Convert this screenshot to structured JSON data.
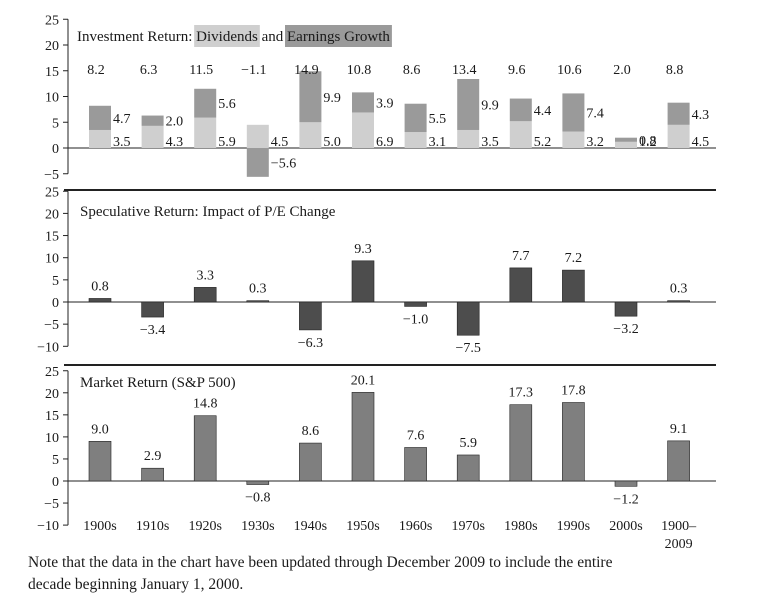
{
  "chart_data": [
    {
      "type": "bar",
      "stacked": true,
      "title_parts": [
        "Investment Return: ",
        "Dividends",
        " and ",
        "Earnings Growth"
      ],
      "ylim": [
        -5,
        25
      ],
      "yticks": [
        -5,
        0,
        5,
        10,
        15,
        20,
        25
      ],
      "categories": [
        "1900s",
        "1910s",
        "1920s",
        "1930s",
        "1940s",
        "1950s",
        "1960s",
        "1970s",
        "1980s",
        "1990s",
        "2000s",
        "1900–2009"
      ],
      "totals": [
        "8.2",
        "6.3",
        "11.5",
        "−1.1",
        "14.9",
        "10.8",
        "8.6",
        "13.4",
        "9.6",
        "10.6",
        "2.0",
        "8.8"
      ],
      "series": [
        {
          "name": "Dividends",
          "color": "#cfcfcf",
          "values": [
            3.5,
            4.3,
            5.9,
            4.5,
            5.0,
            6.9,
            3.1,
            3.5,
            5.2,
            3.2,
            1.2,
            4.5
          ],
          "labels": [
            "3.5",
            "4.3",
            "5.9",
            "4.5",
            "5.0",
            "6.9",
            "3.1",
            "3.5",
            "5.2",
            "3.2",
            "1.2",
            "4.5"
          ]
        },
        {
          "name": "Earnings Growth",
          "color": "#9a9a9a",
          "values": [
            4.7,
            2.0,
            5.6,
            -5.6,
            9.9,
            3.9,
            5.5,
            9.9,
            4.4,
            7.4,
            0.8,
            4.3
          ],
          "labels": [
            "4.7",
            "2.0",
            "5.6",
            "−5.6",
            "9.9",
            "3.9",
            "5.5",
            "9.9",
            "4.4",
            "7.4",
            "0.8",
            "4.3"
          ]
        }
      ]
    },
    {
      "type": "bar",
      "title": "Speculative Return: Impact of P/E Change",
      "ylim": [
        -10,
        25
      ],
      "yticks": [
        -10,
        -5,
        0,
        5,
        10,
        15,
        20,
        25
      ],
      "categories": [
        "1900s",
        "1910s",
        "1920s",
        "1930s",
        "1940s",
        "1950s",
        "1960s",
        "1970s",
        "1980s",
        "1990s",
        "2000s",
        "1900–2009"
      ],
      "color": "#4d4d4d",
      "values": [
        0.8,
        -3.4,
        3.3,
        0.3,
        -6.3,
        9.3,
        -1.0,
        -7.5,
        7.7,
        7.2,
        -3.2,
        0.3
      ],
      "labels": [
        "0.8",
        "−3.4",
        "3.3",
        "0.3",
        "−6.3",
        "9.3",
        "−1.0",
        "−7.5",
        "7.7",
        "7.2",
        "−3.2",
        "0.3"
      ]
    },
    {
      "type": "bar",
      "title": "Market Return (S&P 500)",
      "ylim": [
        -10,
        25
      ],
      "yticks": [
        -10,
        -5,
        0,
        5,
        10,
        15,
        20,
        25
      ],
      "categories": [
        "1900s",
        "1910s",
        "1920s",
        "1930s",
        "1940s",
        "1950s",
        "1960s",
        "1970s",
        "1980s",
        "1990s",
        "2000s",
        "1900–2009"
      ],
      "x_tick_labels": [
        [
          "1900s"
        ],
        [
          "1910s"
        ],
        [
          "1920s"
        ],
        [
          "1930s"
        ],
        [
          "1940s"
        ],
        [
          "1950s"
        ],
        [
          "1960s"
        ],
        [
          "1970s"
        ],
        [
          "1980s"
        ],
        [
          "1990s"
        ],
        [
          "2000s"
        ],
        [
          "1900–",
          "2009"
        ]
      ],
      "color": "#7f7f7f",
      "values": [
        9.0,
        2.9,
        14.8,
        -0.8,
        8.6,
        20.1,
        7.6,
        5.9,
        17.3,
        17.8,
        -1.2,
        9.1
      ],
      "labels": [
        "9.0",
        "2.9",
        "14.8",
        "−0.8",
        "8.6",
        "20.1",
        "7.6",
        "5.9",
        "17.3",
        "17.8",
        "−1.2",
        "9.1"
      ]
    }
  ],
  "note": {
    "line1": "Note that the data in the chart have been updated through December 2009 to include the entire",
    "line2": "decade beginning January 1, 2000."
  }
}
